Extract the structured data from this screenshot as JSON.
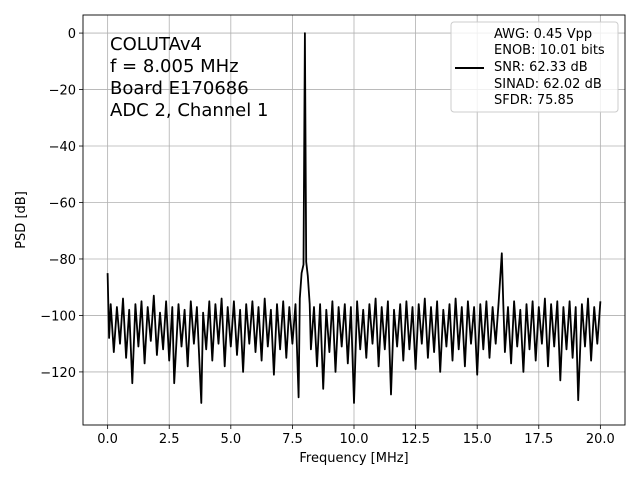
{
  "chart_data": {
    "type": "line",
    "xlabel": "Frequency [MHz]",
    "ylabel": "PSD [dB]",
    "xlim": [
      -1,
      21
    ],
    "ylim": [
      -138.8,
      6.4
    ],
    "xticks": [
      0,
      2.5,
      5,
      7.5,
      10,
      12.5,
      15,
      17.5,
      20
    ],
    "xtick_labels": [
      "0.0",
      "2.5",
      "5.0",
      "7.5",
      "10.0",
      "12.5",
      "15.0",
      "17.5",
      "20.0"
    ],
    "yticks": [
      0,
      -20,
      -40,
      -60,
      -80,
      -100,
      -120
    ],
    "ytick_labels": [
      "0",
      "−20",
      "−40",
      "−60",
      "−80",
      "−100",
      "−120"
    ],
    "grid": true,
    "line_color": "#000000",
    "annotation": [
      "COLUTAv4",
      "f = 8.005 MHz",
      "Board E170686",
      "ADC 2, Channel 1"
    ],
    "legend": {
      "placement": "top-right",
      "lines": [
        "AWG: 0.45 Vpp",
        "ENOB: 10.01 bits",
        "SNR: 62.33 dB",
        "SINAD: 62.02 dB",
        "SFDR: 75.85"
      ]
    },
    "series": [
      {
        "points": [
          [
            0,
            -85
          ],
          [
            0.06,
            -108
          ],
          [
            0.125,
            -96
          ],
          [
            0.25,
            -113
          ],
          [
            0.375,
            -97
          ],
          [
            0.5,
            -110
          ],
          [
            0.625,
            -94
          ],
          [
            0.75,
            -115
          ],
          [
            0.875,
            -98
          ],
          [
            1.0,
            -124
          ],
          [
            1.125,
            -96
          ],
          [
            1.25,
            -111
          ],
          [
            1.375,
            -95
          ],
          [
            1.5,
            -117
          ],
          [
            1.625,
            -97
          ],
          [
            1.75,
            -109
          ],
          [
            1.875,
            -93
          ],
          [
            2.0,
            -114
          ],
          [
            2.125,
            -99
          ],
          [
            2.25,
            -112
          ],
          [
            2.375,
            -95
          ],
          [
            2.5,
            -116
          ],
          [
            2.625,
            -97
          ],
          [
            2.7,
            -124
          ],
          [
            2.875,
            -96
          ],
          [
            3.0,
            -111
          ],
          [
            3.125,
            -98
          ],
          [
            3.25,
            -118
          ],
          [
            3.375,
            -95
          ],
          [
            3.5,
            -110
          ],
          [
            3.625,
            -97
          ],
          [
            3.8,
            -131
          ],
          [
            3.875,
            -99
          ],
          [
            4.0,
            -112
          ],
          [
            4.125,
            -95
          ],
          [
            4.25,
            -116
          ],
          [
            4.375,
            -96
          ],
          [
            4.5,
            -110
          ],
          [
            4.625,
            -94
          ],
          [
            4.75,
            -118
          ],
          [
            4.875,
            -97
          ],
          [
            5.0,
            -111
          ],
          [
            5.125,
            -95
          ],
          [
            5.25,
            -114
          ],
          [
            5.375,
            -98
          ],
          [
            5.5,
            -120
          ],
          [
            5.625,
            -96
          ],
          [
            5.75,
            -110
          ],
          [
            5.875,
            -95
          ],
          [
            6.0,
            -113
          ],
          [
            6.125,
            -97
          ],
          [
            6.25,
            -116
          ],
          [
            6.375,
            -94
          ],
          [
            6.5,
            -111
          ],
          [
            6.625,
            -98
          ],
          [
            6.75,
            -121
          ],
          [
            6.875,
            -96
          ],
          [
            7.0,
            -112
          ],
          [
            7.125,
            -95
          ],
          [
            7.25,
            -115
          ],
          [
            7.375,
            -97
          ],
          [
            7.5,
            -110
          ],
          [
            7.625,
            -96
          ],
          [
            7.75,
            -129
          ],
          [
            7.8,
            -94
          ],
          [
            7.875,
            -85
          ],
          [
            7.95,
            -82
          ],
          [
            8.005,
            0
          ],
          [
            8.06,
            -81
          ],
          [
            8.125,
            -86
          ],
          [
            8.2,
            -96
          ],
          [
            8.25,
            -112
          ],
          [
            8.375,
            -97
          ],
          [
            8.5,
            -118
          ],
          [
            8.625,
            -96
          ],
          [
            8.75,
            -126
          ],
          [
            8.875,
            -98
          ],
          [
            9.0,
            -113
          ],
          [
            9.125,
            -95
          ],
          [
            9.25,
            -120
          ],
          [
            9.375,
            -97
          ],
          [
            9.5,
            -111
          ],
          [
            9.625,
            -96
          ],
          [
            9.75,
            -117
          ],
          [
            9.875,
            -97
          ],
          [
            10.0,
            -131
          ],
          [
            10.125,
            -95
          ],
          [
            10.25,
            -112
          ],
          [
            10.375,
            -98
          ],
          [
            10.5,
            -115
          ],
          [
            10.625,
            -96
          ],
          [
            10.75,
            -110
          ],
          [
            10.875,
            -94
          ],
          [
            11.0,
            -118
          ],
          [
            11.125,
            -97
          ],
          [
            11.25,
            -112
          ],
          [
            11.375,
            -95
          ],
          [
            11.5,
            -128
          ],
          [
            11.625,
            -98
          ],
          [
            11.75,
            -111
          ],
          [
            11.875,
            -96
          ],
          [
            12.0,
            -116
          ],
          [
            12.125,
            -95
          ],
          [
            12.25,
            -112
          ],
          [
            12.375,
            -97
          ],
          [
            12.5,
            -119
          ],
          [
            12.625,
            -96
          ],
          [
            12.75,
            -110
          ],
          [
            12.875,
            -94
          ],
          [
            13.0,
            -115
          ],
          [
            13.125,
            -97
          ],
          [
            13.25,
            -113
          ],
          [
            13.375,
            -95
          ],
          [
            13.5,
            -120
          ],
          [
            13.625,
            -98
          ],
          [
            13.75,
            -111
          ],
          [
            13.875,
            -96
          ],
          [
            14.0,
            -116
          ],
          [
            14.125,
            -94
          ],
          [
            14.25,
            -112
          ],
          [
            14.375,
            -97
          ],
          [
            14.5,
            -118
          ],
          [
            14.625,
            -95
          ],
          [
            14.75,
            -110
          ],
          [
            14.875,
            -97
          ],
          [
            15.0,
            -121
          ],
          [
            15.125,
            -96
          ],
          [
            15.25,
            -112
          ],
          [
            15.375,
            -95
          ],
          [
            15.5,
            -115
          ],
          [
            15.625,
            -97
          ],
          [
            15.75,
            -110
          ],
          [
            15.875,
            -95
          ],
          [
            16.0,
            -78
          ],
          [
            16.06,
            -96
          ],
          [
            16.125,
            -113
          ],
          [
            16.25,
            -97
          ],
          [
            16.375,
            -117
          ],
          [
            16.5,
            -95
          ],
          [
            16.625,
            -111
          ],
          [
            16.75,
            -98
          ],
          [
            16.875,
            -120
          ],
          [
            17.0,
            -96
          ],
          [
            17.125,
            -112
          ],
          [
            17.25,
            -95
          ],
          [
            17.375,
            -116
          ],
          [
            17.5,
            -97
          ],
          [
            17.625,
            -110
          ],
          [
            17.75,
            -94
          ],
          [
            17.875,
            -118
          ],
          [
            18.0,
            -96
          ],
          [
            18.125,
            -111
          ],
          [
            18.25,
            -95
          ],
          [
            18.375,
            -123
          ],
          [
            18.5,
            -97
          ],
          [
            18.625,
            -112
          ],
          [
            18.75,
            -95
          ],
          [
            18.875,
            -115
          ],
          [
            19.0,
            -97
          ],
          [
            19.1,
            -130
          ],
          [
            19.25,
            -96
          ],
          [
            19.375,
            -111
          ],
          [
            19.5,
            -94
          ],
          [
            19.625,
            -116
          ],
          [
            19.75,
            -97
          ],
          [
            19.875,
            -110
          ],
          [
            20.0,
            -95
          ]
        ]
      }
    ]
  }
}
